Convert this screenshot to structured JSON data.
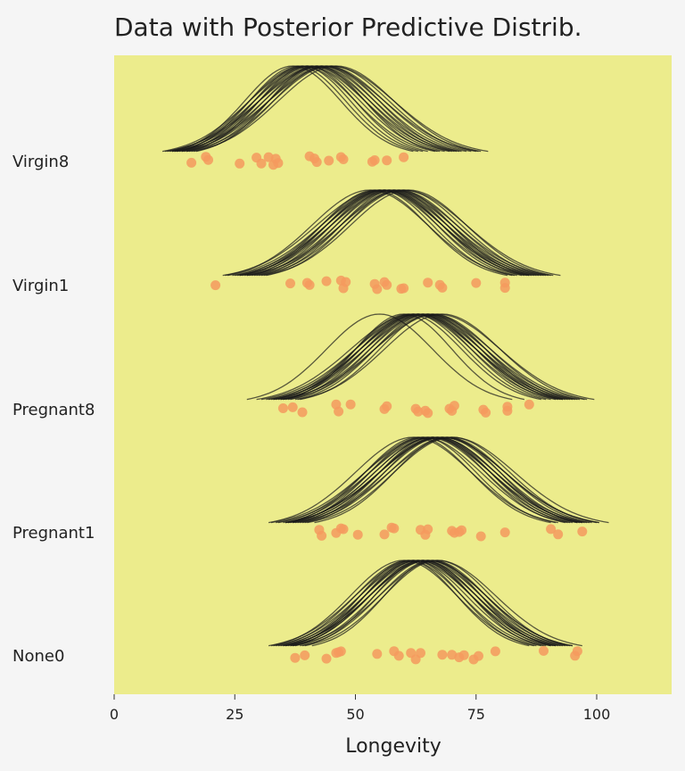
{
  "chart_data": {
    "type": "strip+density",
    "title": "Data with Posterior Predictive Distrib.",
    "xlabel": "Longevity",
    "xlim": [
      0,
      115
    ],
    "xticks": [
      0,
      25,
      50,
      75,
      100
    ],
    "colors": {
      "plot_bg": "#ecec8c",
      "points": "#f59a5e",
      "curves": "#1a1a1a",
      "page_bg": "#f5f5f5"
    },
    "groups": [
      {
        "name": "Virgin8",
        "points": [
          16,
          19,
          19.5,
          26,
          29.5,
          30.5,
          32,
          33,
          33.5,
          34,
          40.5,
          41.5,
          42,
          44.5,
          47,
          47.5,
          53.5,
          54,
          56.5,
          60
        ],
        "curves": [
          [
            40,
            10
          ],
          [
            42,
            11
          ],
          [
            43,
            12
          ],
          [
            41,
            11
          ],
          [
            44,
            12
          ],
          [
            45,
            13
          ],
          [
            38,
            10
          ],
          [
            39,
            10
          ],
          [
            42,
            12
          ],
          [
            46,
            12
          ],
          [
            40,
            11
          ],
          [
            43,
            11
          ],
          [
            41,
            12
          ],
          [
            44,
            11
          ],
          [
            37,
            10
          ],
          [
            45,
            12
          ],
          [
            42,
            10
          ],
          [
            40,
            12
          ],
          [
            43,
            13
          ],
          [
            39,
            11
          ]
        ]
      },
      {
        "name": "Virgin1",
        "points": [
          21,
          36.5,
          40,
          40.5,
          44,
          47,
          47.5,
          48,
          54,
          54.5,
          56,
          56.5,
          59.5,
          60,
          65,
          67.5,
          68,
          75,
          81,
          81
        ],
        "curves": [
          [
            56,
            12
          ],
          [
            57,
            12
          ],
          [
            58,
            13
          ],
          [
            55,
            12
          ],
          [
            59,
            12
          ],
          [
            60,
            13
          ],
          [
            54,
            11
          ],
          [
            56,
            13
          ],
          [
            57,
            11
          ],
          [
            58,
            12
          ],
          [
            55,
            13
          ],
          [
            59,
            11
          ],
          [
            56,
            12
          ],
          [
            60,
            12
          ],
          [
            53,
            12
          ],
          [
            57,
            13
          ],
          [
            58,
            11
          ],
          [
            55,
            11
          ],
          [
            61,
            12
          ],
          [
            56,
            11
          ]
        ]
      },
      {
        "name": "Pregnant8",
        "points": [
          35,
          37,
          39,
          46,
          46.5,
          49,
          56,
          56.5,
          62.5,
          63,
          64.5,
          65,
          69.5,
          70,
          70.5,
          76.5,
          77,
          81.5,
          81.5,
          86
        ],
        "curves": [
          [
            63,
            12
          ],
          [
            64,
            12
          ],
          [
            65,
            13
          ],
          [
            62,
            12
          ],
          [
            66,
            12
          ],
          [
            67,
            13
          ],
          [
            61,
            11
          ],
          [
            63,
            13
          ],
          [
            64,
            11
          ],
          [
            65,
            12
          ],
          [
            62,
            13
          ],
          [
            66,
            11
          ],
          [
            55,
            11
          ],
          [
            60,
            10
          ],
          [
            63,
            12
          ],
          [
            64,
            13
          ],
          [
            65,
            11
          ],
          [
            62,
            11
          ],
          [
            68,
            12
          ],
          [
            63,
            11
          ]
        ]
      },
      {
        "name": "Pregnant1",
        "points": [
          42.5,
          43,
          46,
          47,
          47.5,
          50.5,
          56,
          57.5,
          58,
          63.5,
          64.5,
          65,
          70,
          70.5,
          71.5,
          72,
          76,
          81,
          90.5,
          92,
          97
        ],
        "curves": [
          [
            66,
            12
          ],
          [
            67,
            12
          ],
          [
            68,
            13
          ],
          [
            65,
            12
          ],
          [
            69,
            12
          ],
          [
            70,
            13
          ],
          [
            64,
            11
          ],
          [
            66,
            13
          ],
          [
            67,
            11
          ],
          [
            68,
            12
          ],
          [
            65,
            13
          ],
          [
            69,
            11
          ],
          [
            62,
            12
          ],
          [
            67,
            12
          ],
          [
            66,
            12
          ],
          [
            68,
            13
          ],
          [
            64,
            12
          ],
          [
            70,
            12
          ],
          [
            63,
            11
          ],
          [
            66,
            11
          ]
        ]
      },
      {
        "name": "None0",
        "points": [
          37.5,
          39.5,
          44,
          46,
          46.5,
          47,
          54.5,
          58,
          59,
          61.5,
          62.5,
          63.5,
          68,
          70,
          71.5,
          72.5,
          74.5,
          75.5,
          79,
          89,
          95.5,
          96
        ],
        "curves": [
          [
            63,
            11
          ],
          [
            64,
            11
          ],
          [
            65,
            12
          ],
          [
            62,
            11
          ],
          [
            66,
            11
          ],
          [
            67,
            12
          ],
          [
            61,
            10
          ],
          [
            63,
            12
          ],
          [
            64,
            10
          ],
          [
            65,
            11
          ],
          [
            62,
            12
          ],
          [
            66,
            10
          ],
          [
            60,
            11
          ],
          [
            64,
            12
          ],
          [
            63,
            11
          ],
          [
            65,
            12
          ],
          [
            61,
            11
          ],
          [
            67,
            11
          ],
          [
            62,
            10
          ],
          [
            64,
            11
          ]
        ]
      }
    ]
  }
}
